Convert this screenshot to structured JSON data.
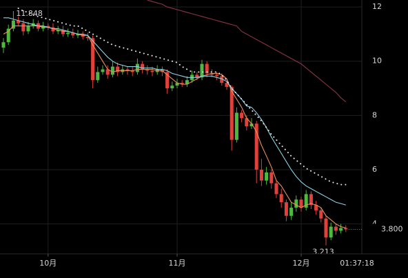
{
  "chart_data": {
    "type": "candlestick",
    "categories": [
      null,
      null,
      null,
      null,
      null,
      null,
      null,
      null,
      null,
      "10月",
      null,
      null,
      null,
      null,
      null,
      null,
      null,
      null,
      null,
      null,
      null,
      null,
      null,
      null,
      null,
      null,
      null,
      null,
      null,
      null,
      null,
      null,
      null,
      null,
      null,
      "11月",
      null,
      null,
      null,
      null,
      null,
      null,
      null,
      null,
      null,
      null,
      null,
      null,
      null,
      null,
      null,
      null,
      null,
      null,
      null,
      null,
      null,
      null,
      null,
      null,
      "12月",
      null,
      null,
      null,
      null,
      null,
      null,
      null,
      null,
      null
    ],
    "open": [
      10.5,
      10.7,
      11.2,
      11.5,
      11.4,
      11.1,
      11.3,
      11.4,
      11.2,
      11.3,
      11.25,
      11.1,
      11.15,
      11.0,
      11.05,
      10.95,
      11.0,
      10.9,
      10.85,
      9.3,
      9.6,
      9.7,
      9.5,
      9.8,
      9.6,
      9.7,
      9.65,
      9.6,
      9.9,
      9.7,
      9.65,
      9.6,
      9.7,
      9.6,
      9.0,
      9.1,
      9.2,
      9.15,
      9.3,
      9.5,
      9.4,
      9.9,
      9.55,
      9.5,
      9.45,
      9.2,
      9.05,
      7.1,
      8.1,
      7.9,
      7.6,
      7.7,
      6.0,
      5.6,
      5.9,
      5.5,
      5.1,
      4.8,
      4.3,
      4.6,
      4.9,
      4.6,
      5.1,
      4.7,
      4.5,
      4.2,
      3.5,
      3.9,
      3.75,
      3.85
    ],
    "high": [
      10.85,
      11.35,
      11.848,
      11.65,
      11.55,
      11.45,
      11.55,
      11.5,
      11.45,
      11.4,
      11.4,
      11.3,
      11.3,
      11.2,
      11.2,
      11.15,
      11.1,
      11.05,
      10.95,
      9.8,
      9.85,
      9.85,
      10.0,
      9.95,
      9.85,
      9.8,
      9.8,
      10.1,
      10.0,
      9.85,
      9.8,
      9.85,
      9.8,
      9.7,
      9.25,
      9.35,
      9.3,
      9.45,
      9.65,
      9.6,
      10.05,
      10.0,
      9.7,
      9.6,
      9.55,
      9.3,
      9.1,
      8.3,
      8.2,
      8.0,
      7.9,
      7.8,
      6.4,
      6.1,
      6.0,
      5.6,
      5.3,
      4.9,
      4.8,
      5.05,
      5.0,
      5.25,
      5.2,
      4.85,
      4.6,
      4.3,
      4.05,
      4.0,
      4.0,
      3.95
    ],
    "low": [
      10.3,
      10.6,
      11.1,
      11.3,
      10.95,
      11.0,
      11.2,
      11.1,
      11.1,
      11.15,
      11.0,
      11.0,
      10.9,
      10.9,
      10.85,
      10.85,
      10.8,
      10.75,
      9.0,
      9.2,
      9.5,
      9.35,
      9.4,
      9.45,
      9.5,
      9.5,
      9.45,
      9.5,
      9.55,
      9.5,
      9.45,
      9.5,
      9.45,
      8.8,
      8.9,
      9.0,
      9.05,
      9.05,
      9.2,
      9.3,
      9.3,
      9.4,
      9.4,
      9.3,
      9.1,
      8.95,
      6.7,
      7.0,
      7.75,
      7.45,
      7.5,
      5.5,
      5.4,
      5.45,
      5.3,
      4.95,
      4.6,
      4.1,
      4.15,
      4.45,
      4.45,
      4.5,
      4.55,
      4.35,
      4.05,
      3.213,
      3.4,
      3.6,
      3.65,
      3.7
    ],
    "close": [
      10.7,
      11.2,
      11.5,
      11.4,
      11.1,
      11.3,
      11.4,
      11.2,
      11.3,
      11.25,
      11.1,
      11.15,
      11.0,
      11.05,
      10.95,
      11.0,
      10.9,
      10.85,
      9.3,
      9.6,
      9.7,
      9.5,
      9.8,
      9.6,
      9.7,
      9.65,
      9.6,
      9.9,
      9.7,
      9.65,
      9.6,
      9.7,
      9.6,
      9.0,
      9.1,
      9.2,
      9.15,
      9.3,
      9.5,
      9.4,
      9.9,
      9.55,
      9.5,
      9.45,
      9.2,
      9.05,
      7.1,
      8.1,
      7.9,
      7.6,
      7.7,
      6.0,
      5.6,
      5.9,
      5.5,
      5.1,
      4.8,
      4.3,
      4.6,
      4.9,
      4.6,
      5.1,
      4.7,
      4.5,
      4.2,
      3.5,
      3.9,
      3.75,
      3.85,
      3.8
    ],
    "up_color": "#4fb83f",
    "down_color": "#e0413a",
    "lines": [
      {
        "color": "#e8935a",
        "style": "solid",
        "values": [
          11.0,
          11.1,
          11.3,
          11.3,
          11.3,
          11.3,
          11.3,
          11.3,
          11.25,
          11.25,
          11.2,
          11.15,
          11.1,
          11.1,
          11.05,
          11.0,
          10.95,
          10.95,
          10.6,
          10.3,
          10.0,
          9.7,
          9.6,
          9.65,
          9.65,
          9.65,
          9.65,
          9.7,
          9.7,
          9.7,
          9.7,
          9.65,
          9.65,
          9.5,
          9.35,
          9.2,
          9.15,
          9.15,
          9.25,
          9.35,
          9.45,
          9.5,
          9.55,
          9.55,
          9.5,
          9.35,
          8.9,
          8.6,
          8.3,
          7.9,
          7.7,
          7.4,
          6.9,
          6.5,
          6.1,
          5.6,
          5.4,
          5.1,
          4.8,
          4.7,
          4.6,
          4.7,
          4.75,
          4.7,
          4.6,
          4.3,
          4.15,
          4.0,
          3.9,
          3.85
        ]
      },
      {
        "color": "#8fd4e6",
        "style": "solid",
        "values": [
          11.6,
          11.6,
          11.55,
          11.5,
          11.45,
          11.4,
          11.35,
          11.3,
          11.3,
          11.25,
          11.2,
          11.2,
          11.15,
          11.1,
          11.05,
          11.0,
          11.0,
          10.95,
          10.75,
          10.55,
          10.35,
          10.15,
          10.0,
          9.9,
          9.85,
          9.8,
          9.8,
          9.8,
          9.75,
          9.75,
          9.75,
          9.7,
          9.7,
          9.65,
          9.55,
          9.5,
          9.45,
          9.4,
          9.4,
          9.4,
          9.45,
          9.45,
          9.45,
          9.4,
          9.35,
          9.25,
          9.0,
          8.8,
          8.6,
          8.35,
          8.3,
          8.1,
          7.85,
          7.55,
          7.2,
          6.9,
          6.6,
          6.3,
          6.0,
          5.75,
          5.55,
          5.4,
          5.3,
          5.2,
          5.1,
          5.0,
          4.9,
          4.8,
          4.75,
          4.7
        ]
      },
      {
        "color": "#e6e6e6",
        "style": "dotted",
        "values": [
          null,
          null,
          null,
          11.95,
          11.85,
          11.8,
          11.7,
          11.65,
          11.6,
          11.55,
          11.5,
          11.45,
          11.4,
          11.35,
          11.3,
          11.3,
          11.2,
          11.1,
          11.0,
          10.9,
          10.8,
          10.7,
          10.6,
          10.55,
          10.5,
          10.45,
          10.4,
          10.35,
          10.3,
          10.25,
          10.2,
          10.15,
          10.1,
          10.05,
          10.0,
          9.95,
          9.8,
          9.7,
          9.6,
          9.6,
          9.6,
          9.6,
          9.6,
          9.6,
          9.5,
          9.3,
          9.0,
          8.8,
          8.6,
          8.4,
          8.2,
          8.0,
          7.8,
          7.55,
          7.3,
          7.1,
          6.9,
          6.7,
          6.5,
          6.35,
          6.2,
          6.05,
          5.95,
          5.85,
          5.75,
          5.65,
          5.55,
          5.5,
          5.45,
          5.45
        ]
      },
      {
        "color": "#8a3446",
        "style": "solid",
        "values": [
          null,
          null,
          null,
          null,
          null,
          null,
          null,
          null,
          null,
          null,
          null,
          null,
          null,
          null,
          null,
          null,
          null,
          null,
          null,
          null,
          null,
          null,
          null,
          null,
          null,
          null,
          null,
          null,
          null,
          12.25,
          12.2,
          12.15,
          12.1,
          12.0,
          11.95,
          11.9,
          11.85,
          11.8,
          11.75,
          11.7,
          11.65,
          11.6,
          11.55,
          11.5,
          11.45,
          11.4,
          11.35,
          11.3,
          11.1,
          11.0,
          10.9,
          10.8,
          10.7,
          10.6,
          10.5,
          10.4,
          10.3,
          10.2,
          10.1,
          10.0,
          9.9,
          9.75,
          9.6,
          9.45,
          9.3,
          9.15,
          9.0,
          8.85,
          8.65,
          8.5
        ]
      }
    ],
    "ylim": [
      2.897,
      12.256
    ],
    "yticks": [
      4,
      6,
      8,
      10,
      12
    ],
    "grid": true,
    "last_price": {
      "value": 3.8,
      "label": "3.800"
    },
    "countdown": "01:37:18"
  }
}
